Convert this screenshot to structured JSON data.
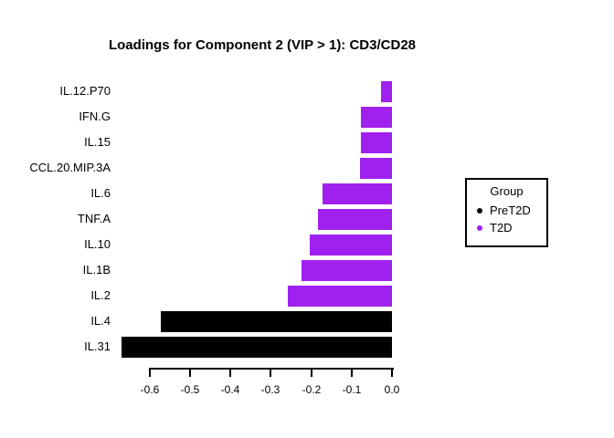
{
  "chart": {
    "title": "Loadings for Component 2 (VIP > 1): CD3/CD28"
  },
  "chart_data": {
    "type": "bar",
    "orientation": "horizontal",
    "title": "Loadings for Component 2 (VIP > 1): CD3/CD28",
    "categories": [
      "IL.12.P70",
      "IFN.G",
      "IL.15",
      "CCL.20.MIP.3A",
      "IL.6",
      "TNF.A",
      "IL.10",
      "IL.1B",
      "IL.2",
      "IL.4",
      "IL.31"
    ],
    "values": [
      -0.028,
      -0.077,
      -0.077,
      -0.08,
      -0.172,
      -0.184,
      -0.204,
      -0.224,
      -0.258,
      -0.573,
      -0.67
    ],
    "groups": [
      "T2D",
      "T2D",
      "T2D",
      "T2D",
      "T2D",
      "T2D",
      "T2D",
      "T2D",
      "T2D",
      "PreT2D",
      "PreT2D"
    ],
    "group_colors": {
      "PreT2D": "#000000",
      "T2D": "#A020F0"
    },
    "xlabel": "",
    "ylabel": "",
    "xlim": [
      -0.7,
      0.0
    ],
    "xticks": {
      "values": [
        -0.6,
        -0.5,
        -0.4,
        -0.3,
        -0.2,
        -0.1,
        0.0
      ],
      "labels": [
        "-0.6",
        "-0.5",
        "-0.4",
        "-0.3",
        "-0.2",
        "-0.1",
        "0.0"
      ]
    },
    "grid": false,
    "legend_position": "right"
  },
  "legend": {
    "title": "Group",
    "items": [
      {
        "label": "PreT2D",
        "color": "#000000"
      },
      {
        "label": "T2D",
        "color": "#A020F0"
      }
    ]
  },
  "colors": {
    "background": "#FFFFFF",
    "axis": "#000000",
    "text": "#000000"
  }
}
